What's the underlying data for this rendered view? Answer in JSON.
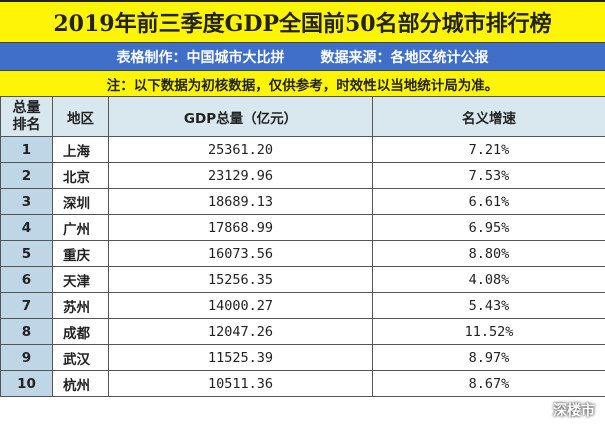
{
  "header": {
    "title": "2019年前三季度GDP全国前50名部分城市排行榜",
    "credit_left": "表格制作：中国城市大比拼",
    "credit_right": "数据来源：各地区统计公报",
    "note": "注：以下数据为初核数据，仅供参考，时效性以当地统计局为准。"
  },
  "table": {
    "columns": [
      "总量\n排名",
      "地区",
      "GDP总量（亿元）",
      "名义增速"
    ],
    "rows": [
      {
        "rank": "1",
        "region": "上海",
        "gdp": "25361.20",
        "growth": "7.21%"
      },
      {
        "rank": "2",
        "region": "北京",
        "gdp": "23129.96",
        "growth": "7.53%"
      },
      {
        "rank": "3",
        "region": "深圳",
        "gdp": "18689.13",
        "growth": "6.61%"
      },
      {
        "rank": "4",
        "region": "广州",
        "gdp": "17868.99",
        "growth": "6.95%"
      },
      {
        "rank": "5",
        "region": "重庆",
        "gdp": "16073.56",
        "growth": "8.80%"
      },
      {
        "rank": "6",
        "region": "天津",
        "gdp": "15256.35",
        "growth": "4.08%"
      },
      {
        "rank": "7",
        "region": "苏州",
        "gdp": "14000.27",
        "growth": "5.43%"
      },
      {
        "rank": "8",
        "region": "成都",
        "gdp": "12047.26",
        "growth": "11.52%"
      },
      {
        "rank": "9",
        "region": "武汉",
        "gdp": "11525.39",
        "growth": "8.97%"
      },
      {
        "rank": "10",
        "region": "杭州",
        "gdp": "10511.36",
        "growth": "8.67%"
      }
    ]
  },
  "watermark": {
    "icon": "wechat-icon",
    "text": "深楼市"
  }
}
